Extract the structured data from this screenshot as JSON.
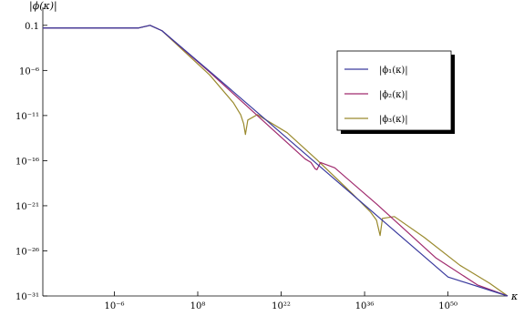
{
  "chart_data": {
    "type": "line",
    "ylabel": "|ϕ(κ)|",
    "xlabel": "κ",
    "x_scale": "log",
    "y_scale": "log",
    "xlim_log10": [
      -18,
      60
    ],
    "ylim_log10": [
      -31,
      1
    ],
    "x_ticks": [
      {
        "log10": -6,
        "label": "10⁻⁶"
      },
      {
        "log10": 8,
        "label": "10⁸"
      },
      {
        "log10": 22,
        "label": "10²²"
      },
      {
        "log10": 36,
        "label": "10³⁶"
      },
      {
        "log10": 50,
        "label": "10⁵⁰"
      }
    ],
    "y_ticks": [
      {
        "log10": -1,
        "label": "0.1"
      },
      {
        "log10": -6,
        "label": "10⁻⁶"
      },
      {
        "log10": -11,
        "label": "10⁻¹¹"
      },
      {
        "log10": -16,
        "label": "10⁻¹⁶"
      },
      {
        "log10": -21,
        "label": "10⁻²¹"
      },
      {
        "log10": -26,
        "label": "10⁻²⁶"
      },
      {
        "log10": -31,
        "label": "10⁻³¹"
      }
    ],
    "series": [
      {
        "name": "|ϕ₁(κ)|",
        "color": "#3a3a9e",
        "points_log10": [
          [
            -18,
            -1.3
          ],
          [
            -2,
            -1.3
          ],
          [
            0,
            -1.0
          ],
          [
            2,
            -1.6
          ],
          [
            10,
            -6.1
          ],
          [
            20,
            -11.8
          ],
          [
            30,
            -17.5
          ],
          [
            40,
            -23.2
          ],
          [
            50,
            -28.9
          ],
          [
            60,
            -31.0
          ]
        ]
      },
      {
        "name": "|ϕ₂(κ)|",
        "color": "#a02b6e",
        "points_log10": [
          [
            -18,
            -1.3
          ],
          [
            -2,
            -1.3
          ],
          [
            0,
            -1.0
          ],
          [
            2,
            -1.6
          ],
          [
            10,
            -6.2
          ],
          [
            20,
            -12.2
          ],
          [
            26,
            -15.8
          ],
          [
            27,
            -16.2
          ],
          [
            27.7,
            -16.9
          ],
          [
            28,
            -17.0
          ],
          [
            28.6,
            -16.2
          ],
          [
            31,
            -16.8
          ],
          [
            38,
            -20.8
          ],
          [
            48,
            -26.8
          ],
          [
            55,
            -29.8
          ],
          [
            60,
            -31.0
          ]
        ]
      },
      {
        "name": "|ϕ₃(κ)|",
        "color": "#9a8a2e",
        "points_log10": [
          [
            -18,
            -1.3
          ],
          [
            -2,
            -1.3
          ],
          [
            0,
            -1.0
          ],
          [
            2,
            -1.6
          ],
          [
            10,
            -6.5
          ],
          [
            14,
            -9.6
          ],
          [
            15.2,
            -10.9
          ],
          [
            15.7,
            -11.9
          ],
          [
            16,
            -13.1
          ],
          [
            16.4,
            -11.5
          ],
          [
            18,
            -10.9
          ],
          [
            23,
            -12.9
          ],
          [
            28,
            -15.9
          ],
          [
            34,
            -19.7
          ],
          [
            37,
            -21.7
          ],
          [
            38,
            -22.6
          ],
          [
            38.6,
            -24.3
          ],
          [
            39,
            -22.4
          ],
          [
            41,
            -22.2
          ],
          [
            46,
            -24.5
          ],
          [
            52,
            -27.6
          ],
          [
            57,
            -29.6
          ],
          [
            60,
            -31.0
          ]
        ]
      }
    ],
    "legend_position": "top-right"
  }
}
